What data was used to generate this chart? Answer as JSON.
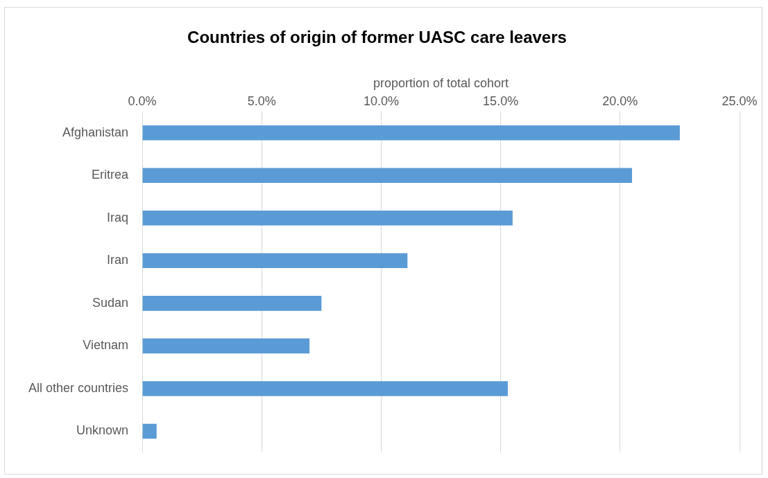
{
  "chart_data": {
    "type": "bar",
    "orientation": "horizontal",
    "title": "Countries of origin of former UASC care leavers",
    "xlabel": "proportion of total cohort",
    "categories": [
      "Afghanistan",
      "Eritrea",
      "Iraq",
      "Iran",
      "Sudan",
      "Vietnam",
      "All other countries",
      "Unknown"
    ],
    "values": [
      22.5,
      20.5,
      15.5,
      11.1,
      7.5,
      7.0,
      15.3,
      0.6
    ],
    "color": "#5b9bd5",
    "xlim": [
      0,
      25
    ],
    "xticks": [
      {
        "value": 0,
        "label": "0.0%"
      },
      {
        "value": 5,
        "label": "5.0%"
      },
      {
        "value": 10,
        "label": "10.0%"
      },
      {
        "value": 15,
        "label": "15.0%"
      },
      {
        "value": 20,
        "label": "20.0%"
      },
      {
        "value": 25,
        "label": "25.0%"
      }
    ],
    "grid": "x",
    "legend": false
  }
}
